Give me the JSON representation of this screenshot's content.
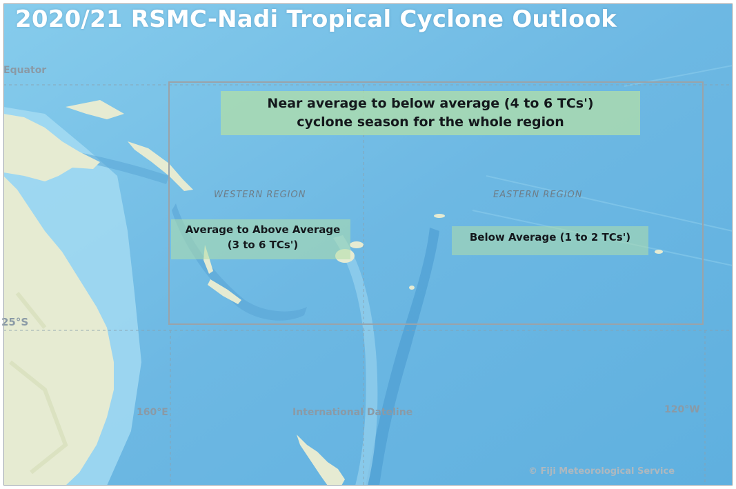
{
  "title": "2020/21 RSMC-Nadi Tropical Cyclone Outlook",
  "graticule": {
    "equator": "Equator",
    "lat_25s": "25°S",
    "lon_160e": "160°E",
    "dateline": "International Dateline",
    "lon_120w": "120°W"
  },
  "whole_region": {
    "line1": "Near average to below average (4 to 6 TCs')",
    "line2": "cyclone season for the whole region"
  },
  "western_region": {
    "label": "WESTERN REGION",
    "line1": "Average to Above Average",
    "line2": "(3 to 6 TCs')"
  },
  "eastern_region": {
    "label": "EASTERN REGION",
    "text": "Below Average (1 to 2 TCs')"
  },
  "copyright": "© Fiji Meteorological Service",
  "colors": {
    "ocean": "#7ec4e8",
    "deep_ocean": "#5aa8d8",
    "land": "#e6ebd2",
    "highlight": "#b0deaa",
    "box": "#9aa3a9"
  }
}
